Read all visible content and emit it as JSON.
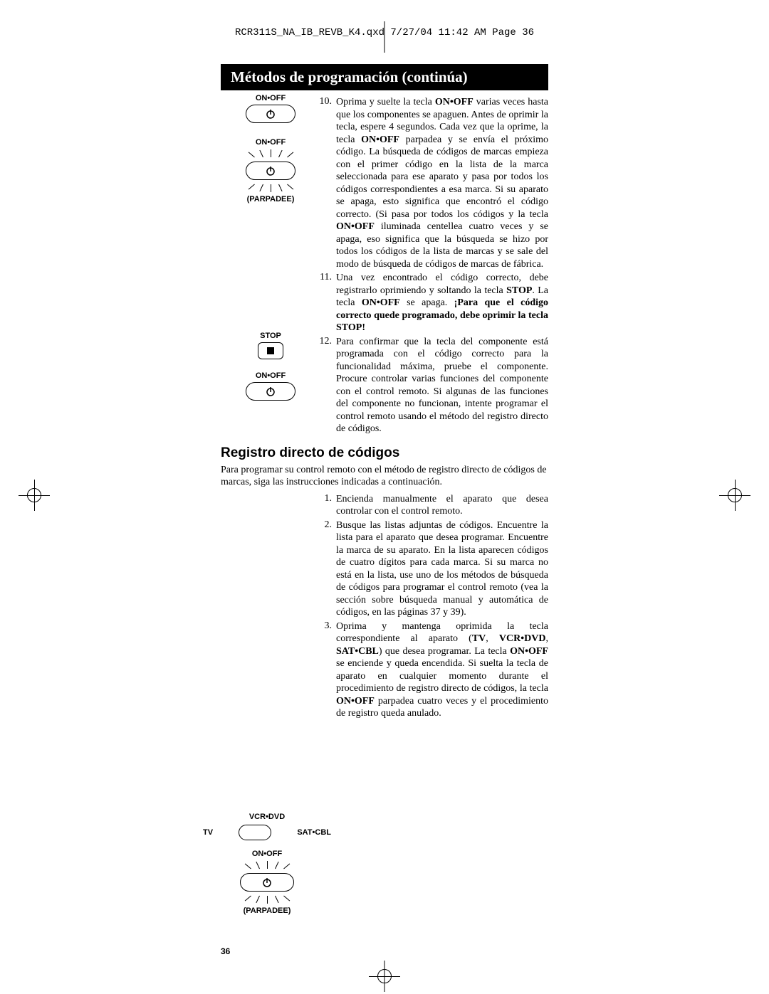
{
  "header": "RCR311S_NA_IB_REVB_K4.qxd   7/27/04  11:42 AM  Page 36",
  "banner": "Métodos de programación (continúa)",
  "page_number": "36",
  "figures": {
    "fig1": {
      "label1": "ON•OFF",
      "label2": "ON•OFF",
      "label3": "(PARPADEE)"
    },
    "fig2": {
      "label_stop": "STOP",
      "label_onoff": "ON•OFF"
    },
    "fig3": {
      "label_top": "VCR•DVD",
      "label_left": "TV",
      "label_right": "SAT•CBL",
      "label_onoff": "ON•OFF",
      "label_parp": "(PARPADEE)"
    }
  },
  "steps_a": [
    {
      "num": "10.",
      "html": "Oprima y suelte la tecla <b>ON•OFF</b> varias veces hasta que los componentes se apaguen. Antes de oprimir la tecla, espere 4 segundos. Cada vez que la oprime, la tecla <b>ON•OFF</b> parpadea y se envía el próximo código. La búsqueda de códigos de marcas empieza con el primer código en la lista de la marca seleccionada para ese aparato y pasa por todos los códigos correspondientes a esa marca. Si su aparato se apaga, esto significa que encontró el código correcto. (Si pasa por todos los códigos y la tecla <b>ON•OFF</b> iluminada centellea cuatro veces y se apaga, eso significa que la búsqueda se hizo por todos los códigos de la lista de marcas y se sale del modo de búsqueda de códigos de marcas de fábrica."
    },
    {
      "num": "11.",
      "html": "Una vez encontrado el código correcto, debe registrarlo oprimiendo y soltando la tecla <b>STOP</b>. La tecla <b>ON•OFF</b> se apaga. <b>¡Para que el código correcto quede programado, debe oprimir la tecla STOP!</b>"
    },
    {
      "num": "12.",
      "html": "Para confirmar que la tecla del componente está programada con el código correcto para la funcionalidad máxima, pruebe el componente. Procure controlar varias funciones del componente con el control remoto. Si algunas de las funciones del componente no funcionan, intente programar el control remoto usando el método del registro directo de códigos."
    }
  ],
  "subhead": "Registro directo de códigos",
  "intro": "Para programar su control remoto con el método de registro directo de códigos de marcas, siga las instrucciones indicadas a continuación.",
  "steps_b": [
    {
      "num": "1.",
      "html": "Encienda manualmente el aparato que desea controlar con el control remoto."
    },
    {
      "num": "2.",
      "html": "Busque las listas adjuntas de códigos. Encuentre la lista para el aparato que desea programar. Encuentre la marca de su aparato. En la lista aparecen códigos de cuatro dígitos para cada marca. Si su marca no está en la lista, use uno de los métodos de búsqueda de códigos para programar el control remoto (vea la sección sobre búsqueda manual y automática de códigos, en las páginas 37 y 39)."
    },
    {
      "num": "3.",
      "html": "Oprima y mantenga oprimida la tecla correspondiente al aparato (<b>TV</b>, <b>VCR•DVD</b>, <b>SAT•CBL</b>) que desea programar. La tecla <b>ON•OFF</b> se enciende y queda encendida. Si suelta la tecla de aparato en cualquier momento durante el procedimiento de registro directo de códigos, la tecla <b>ON•OFF</b> parpadea cuatro veces y el procedimiento de registro queda anulado."
    }
  ]
}
